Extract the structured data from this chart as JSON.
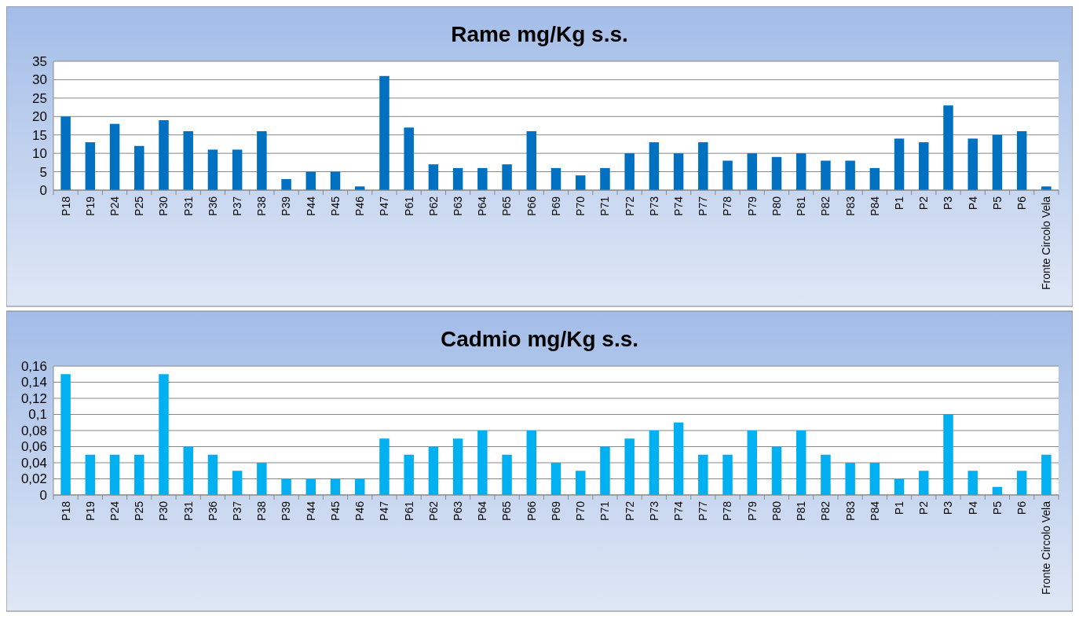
{
  "chart_data": [
    {
      "type": "bar",
      "title": "Rame mg/Kg s.s.",
      "categories": [
        "P18",
        "P19",
        "P24",
        "P25",
        "P30",
        "P31",
        "P36",
        "P37",
        "P38",
        "P39",
        "P44",
        "P45",
        "P46",
        "P47",
        "P61",
        "P62",
        "P63",
        "P64",
        "P65",
        "P66",
        "P69",
        "P70",
        "P71",
        "P72",
        "P73",
        "P74",
        "P77",
        "P78",
        "P79",
        "P80",
        "P81",
        "P82",
        "P83",
        "P84",
        "P1",
        "P2",
        "P3",
        "P4",
        "P5",
        "P6",
        "Fronte Circolo Vela"
      ],
      "values": [
        20,
        13,
        18,
        12,
        19,
        16,
        11,
        11,
        16,
        3,
        5,
        5,
        1,
        31,
        17,
        7,
        6,
        6,
        7,
        16,
        6,
        4,
        6,
        10,
        13,
        10,
        13,
        8,
        10,
        9,
        10,
        8,
        8,
        6,
        14,
        13,
        23,
        14,
        15,
        16,
        1
      ],
      "color": "#0070c0",
      "ylim": [
        0,
        35
      ],
      "yticks": [
        0,
        5,
        10,
        15,
        20,
        25,
        30,
        35
      ],
      "grid": "y"
    },
    {
      "type": "bar",
      "title": "Cadmio mg/Kg s.s.",
      "categories": [
        "P18",
        "P19",
        "P24",
        "P25",
        "P30",
        "P31",
        "P36",
        "P37",
        "P38",
        "P39",
        "P44",
        "P45",
        "P46",
        "P47",
        "P61",
        "P62",
        "P63",
        "P64",
        "P65",
        "P66",
        "P69",
        "P70",
        "P71",
        "P72",
        "P73",
        "P74",
        "P77",
        "P78",
        "P79",
        "P80",
        "P81",
        "P82",
        "P83",
        "P84",
        "P1",
        "P2",
        "P3",
        "P4",
        "P5",
        "P6",
        "Fronte Circolo Vela"
      ],
      "values": [
        0.15,
        0.05,
        0.05,
        0.05,
        0.15,
        0.06,
        0.05,
        0.03,
        0.04,
        0.02,
        0.02,
        0.02,
        0.02,
        0.07,
        0.05,
        0.06,
        0.07,
        0.08,
        0.05,
        0.08,
        0.04,
        0.03,
        0.06,
        0.07,
        0.08,
        0.09,
        0.05,
        0.05,
        0.08,
        0.06,
        0.08,
        0.05,
        0.04,
        0.04,
        0.02,
        0.03,
        0.1,
        0.03,
        0.01,
        0.03,
        0.05
      ],
      "color": "#00b0f0",
      "ylim": [
        0,
        0.16
      ],
      "yticks": [
        0,
        {
          "value": 0.02,
          "label": "0,02"
        },
        {
          "value": 0.04,
          "label": "0,04"
        },
        {
          "value": 0.06,
          "label": "0,06"
        },
        {
          "value": 0.08,
          "label": "0,08"
        },
        {
          "value": 0.1,
          "label": "0,1"
        },
        {
          "value": 0.12,
          "label": "0,12"
        },
        {
          "value": 0.14,
          "label": "0,14"
        },
        {
          "value": 0.16,
          "label": "0,16"
        }
      ],
      "grid": "y"
    }
  ]
}
